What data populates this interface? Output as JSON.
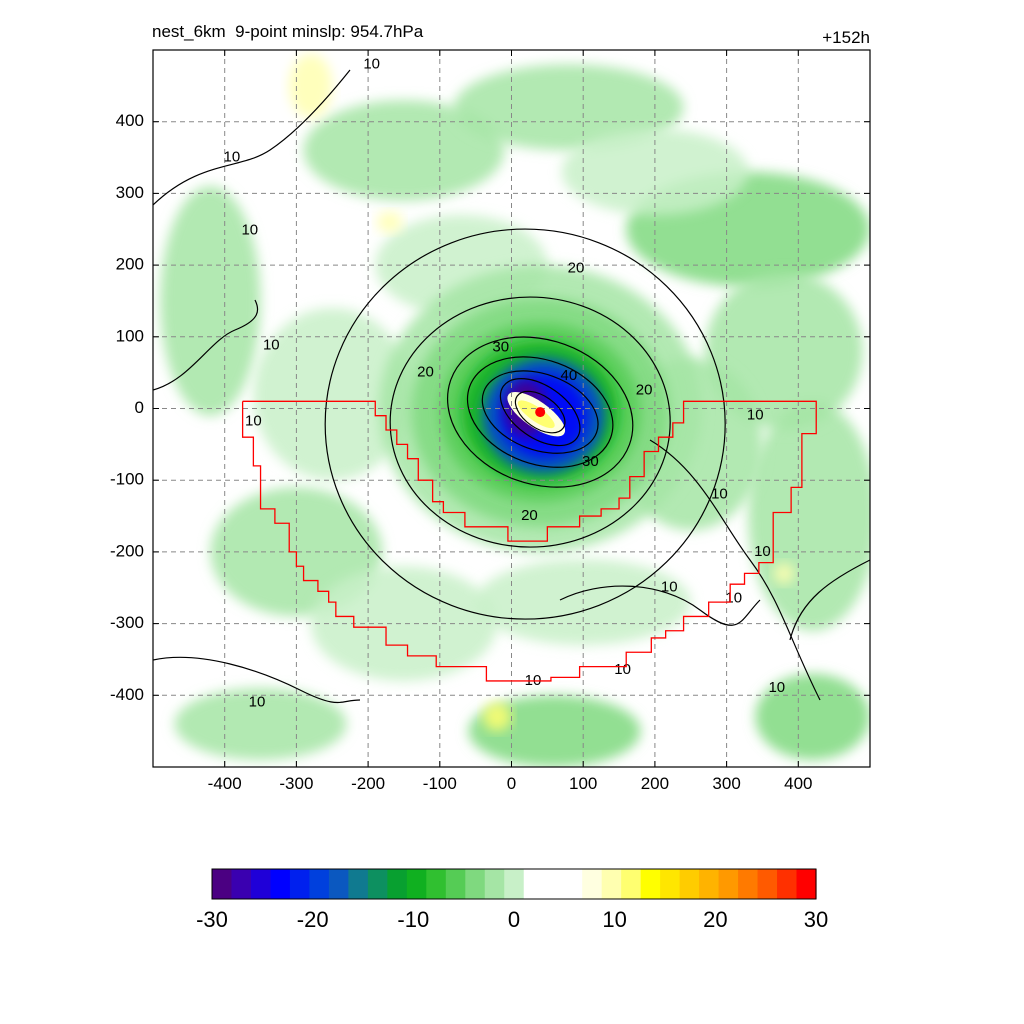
{
  "chart_data": {
    "type": "heatmap",
    "title_left": "nest_6km  9-point minslp: 954.7hPa",
    "title_right": "+152h",
    "x_range": [
      -500,
      500
    ],
    "y_range": [
      -500,
      500
    ],
    "x_ticks": [
      -400,
      -300,
      -200,
      -100,
      0,
      100,
      200,
      300,
      400
    ],
    "x_tick_labels": [
      "-400",
      "-300",
      "-200",
      "-100",
      "0",
      "100",
      "200",
      "300",
      "400"
    ],
    "y_ticks": [
      400,
      300,
      200,
      100,
      0,
      -100,
      -200,
      -300,
      -400
    ],
    "y_tick_labels": [
      "400",
      "300",
      "200",
      "100",
      "0",
      "-100",
      "-200",
      "-300",
      "-400"
    ],
    "grid": true,
    "colorbar": {
      "min": -30,
      "max": 30,
      "ticks": [
        -30,
        -20,
        -10,
        0,
        10,
        20,
        30
      ],
      "tick_labels": [
        "-30",
        "-20",
        "-10",
        "0",
        "10",
        "20",
        "30"
      ],
      "placement": "bottom",
      "colors": [
        "#4b0082",
        "#3a00b0",
        "#1f00d8",
        "#0000ff",
        "#0020ee",
        "#0040dd",
        "#0b58c0",
        "#107a90",
        "#0d9060",
        "#08a030",
        "#10b020",
        "#30c030",
        "#55cc55",
        "#7fd97f",
        "#a5e5a5",
        "#c8f0c8",
        "#ffffff",
        "#ffffff",
        "#ffffff",
        "#ffffe0",
        "#ffffb0",
        "#ffff70",
        "#ffff00",
        "#ffe600",
        "#ffcc00",
        "#ffb300",
        "#ff9900",
        "#ff7a00",
        "#ff5a00",
        "#ff3000",
        "#ff0000"
      ]
    },
    "contour_labels": [
      {
        "text": "10",
        "x": -390,
        "y": 350
      },
      {
        "text": "10",
        "x": -365,
        "y": 248
      },
      {
        "text": "10",
        "x": -335,
        "y": 88
      },
      {
        "text": "10",
        "x": -360,
        "y": -18
      },
      {
        "text": "10",
        "x": -195,
        "y": 480
      },
      {
        "text": "20",
        "x": 90,
        "y": 195
      },
      {
        "text": "20",
        "x": -120,
        "y": 50
      },
      {
        "text": "20",
        "x": 185,
        "y": 25
      },
      {
        "text": "20",
        "x": 25,
        "y": -150
      },
      {
        "text": "30",
        "x": -15,
        "y": 85
      },
      {
        "text": "30",
        "x": 110,
        "y": -75
      },
      {
        "text": "40",
        "x": 80,
        "y": 45
      },
      {
        "text": "10",
        "x": 340,
        "y": -10
      },
      {
        "text": "10",
        "x": 290,
        "y": -120
      },
      {
        "text": "10",
        "x": 350,
        "y": -200
      },
      {
        "text": "10",
        "x": 220,
        "y": -250
      },
      {
        "text": "10",
        "x": 310,
        "y": -265
      },
      {
        "text": "10",
        "x": 370,
        "y": -390
      },
      {
        "text": "10",
        "x": 30,
        "y": -380
      },
      {
        "text": "10",
        "x": 155,
        "y": -365
      },
      {
        "text": "10",
        "x": -355,
        "y": -410
      }
    ],
    "storm_center": {
      "x": 40,
      "y": -5
    },
    "domain_boundary": [
      [
        -375,
        10
      ],
      [
        -190,
        10
      ],
      [
        -190,
        -10
      ],
      [
        -175,
        -10
      ],
      [
        -175,
        -30
      ],
      [
        -160,
        -30
      ],
      [
        -160,
        -50
      ],
      [
        -145,
        -50
      ],
      [
        -145,
        -70
      ],
      [
        -130,
        -70
      ],
      [
        -130,
        -100
      ],
      [
        -110,
        -100
      ],
      [
        -110,
        -130
      ],
      [
        -95,
        -130
      ],
      [
        -95,
        -145
      ],
      [
        -65,
        -145
      ],
      [
        -65,
        -165
      ],
      [
        -5,
        -165
      ],
      [
        -5,
        -185
      ],
      [
        50,
        -185
      ],
      [
        50,
        -165
      ],
      [
        95,
        -165
      ],
      [
        95,
        -150
      ],
      [
        125,
        -150
      ],
      [
        125,
        -140
      ],
      [
        150,
        -140
      ],
      [
        150,
        -125
      ],
      [
        165,
        -125
      ],
      [
        165,
        -95
      ],
      [
        185,
        -95
      ],
      [
        185,
        -60
      ],
      [
        205,
        -60
      ],
      [
        205,
        -40
      ],
      [
        225,
        -40
      ],
      [
        225,
        -20
      ],
      [
        240,
        -20
      ],
      [
        240,
        10
      ],
      [
        425,
        10
      ],
      [
        425,
        -35
      ],
      [
        405,
        -35
      ],
      [
        405,
        -110
      ],
      [
        390,
        -110
      ],
      [
        390,
        -145
      ],
      [
        365,
        -145
      ],
      [
        365,
        -215
      ],
      [
        345,
        -215
      ],
      [
        345,
        -230
      ],
      [
        325,
        -230
      ],
      [
        325,
        -245
      ],
      [
        305,
        -245
      ],
      [
        305,
        -270
      ],
      [
        275,
        -270
      ],
      [
        275,
        -290
      ],
      [
        240,
        -290
      ],
      [
        240,
        -310
      ],
      [
        215,
        -310
      ],
      [
        215,
        -320
      ],
      [
        195,
        -320
      ],
      [
        195,
        -340
      ],
      [
        160,
        -340
      ],
      [
        160,
        -360
      ],
      [
        95,
        -360
      ],
      [
        95,
        -375
      ],
      [
        55,
        -375
      ],
      [
        55,
        -380
      ],
      [
        -35,
        -380
      ],
      [
        -35,
        -360
      ],
      [
        -105,
        -360
      ],
      [
        -105,
        -345
      ],
      [
        -145,
        -345
      ],
      [
        -145,
        -330
      ],
      [
        -175,
        -330
      ],
      [
        -175,
        -305
      ],
      [
        -220,
        -305
      ],
      [
        -220,
        -290
      ],
      [
        -245,
        -290
      ],
      [
        -245,
        -270
      ],
      [
        -255,
        -270
      ],
      [
        -255,
        -255
      ],
      [
        -270,
        -255
      ],
      [
        -270,
        -240
      ],
      [
        -290,
        -240
      ],
      [
        -290,
        -220
      ],
      [
        -300,
        -220
      ],
      [
        -300,
        -200
      ],
      [
        -310,
        -200
      ],
      [
        -310,
        -160
      ],
      [
        -330,
        -160
      ],
      [
        -330,
        -140
      ],
      [
        -350,
        -140
      ],
      [
        -350,
        -80
      ],
      [
        -360,
        -80
      ],
      [
        -360,
        -40
      ],
      [
        -375,
        -40
      ],
      [
        -375,
        10
      ]
    ]
  }
}
